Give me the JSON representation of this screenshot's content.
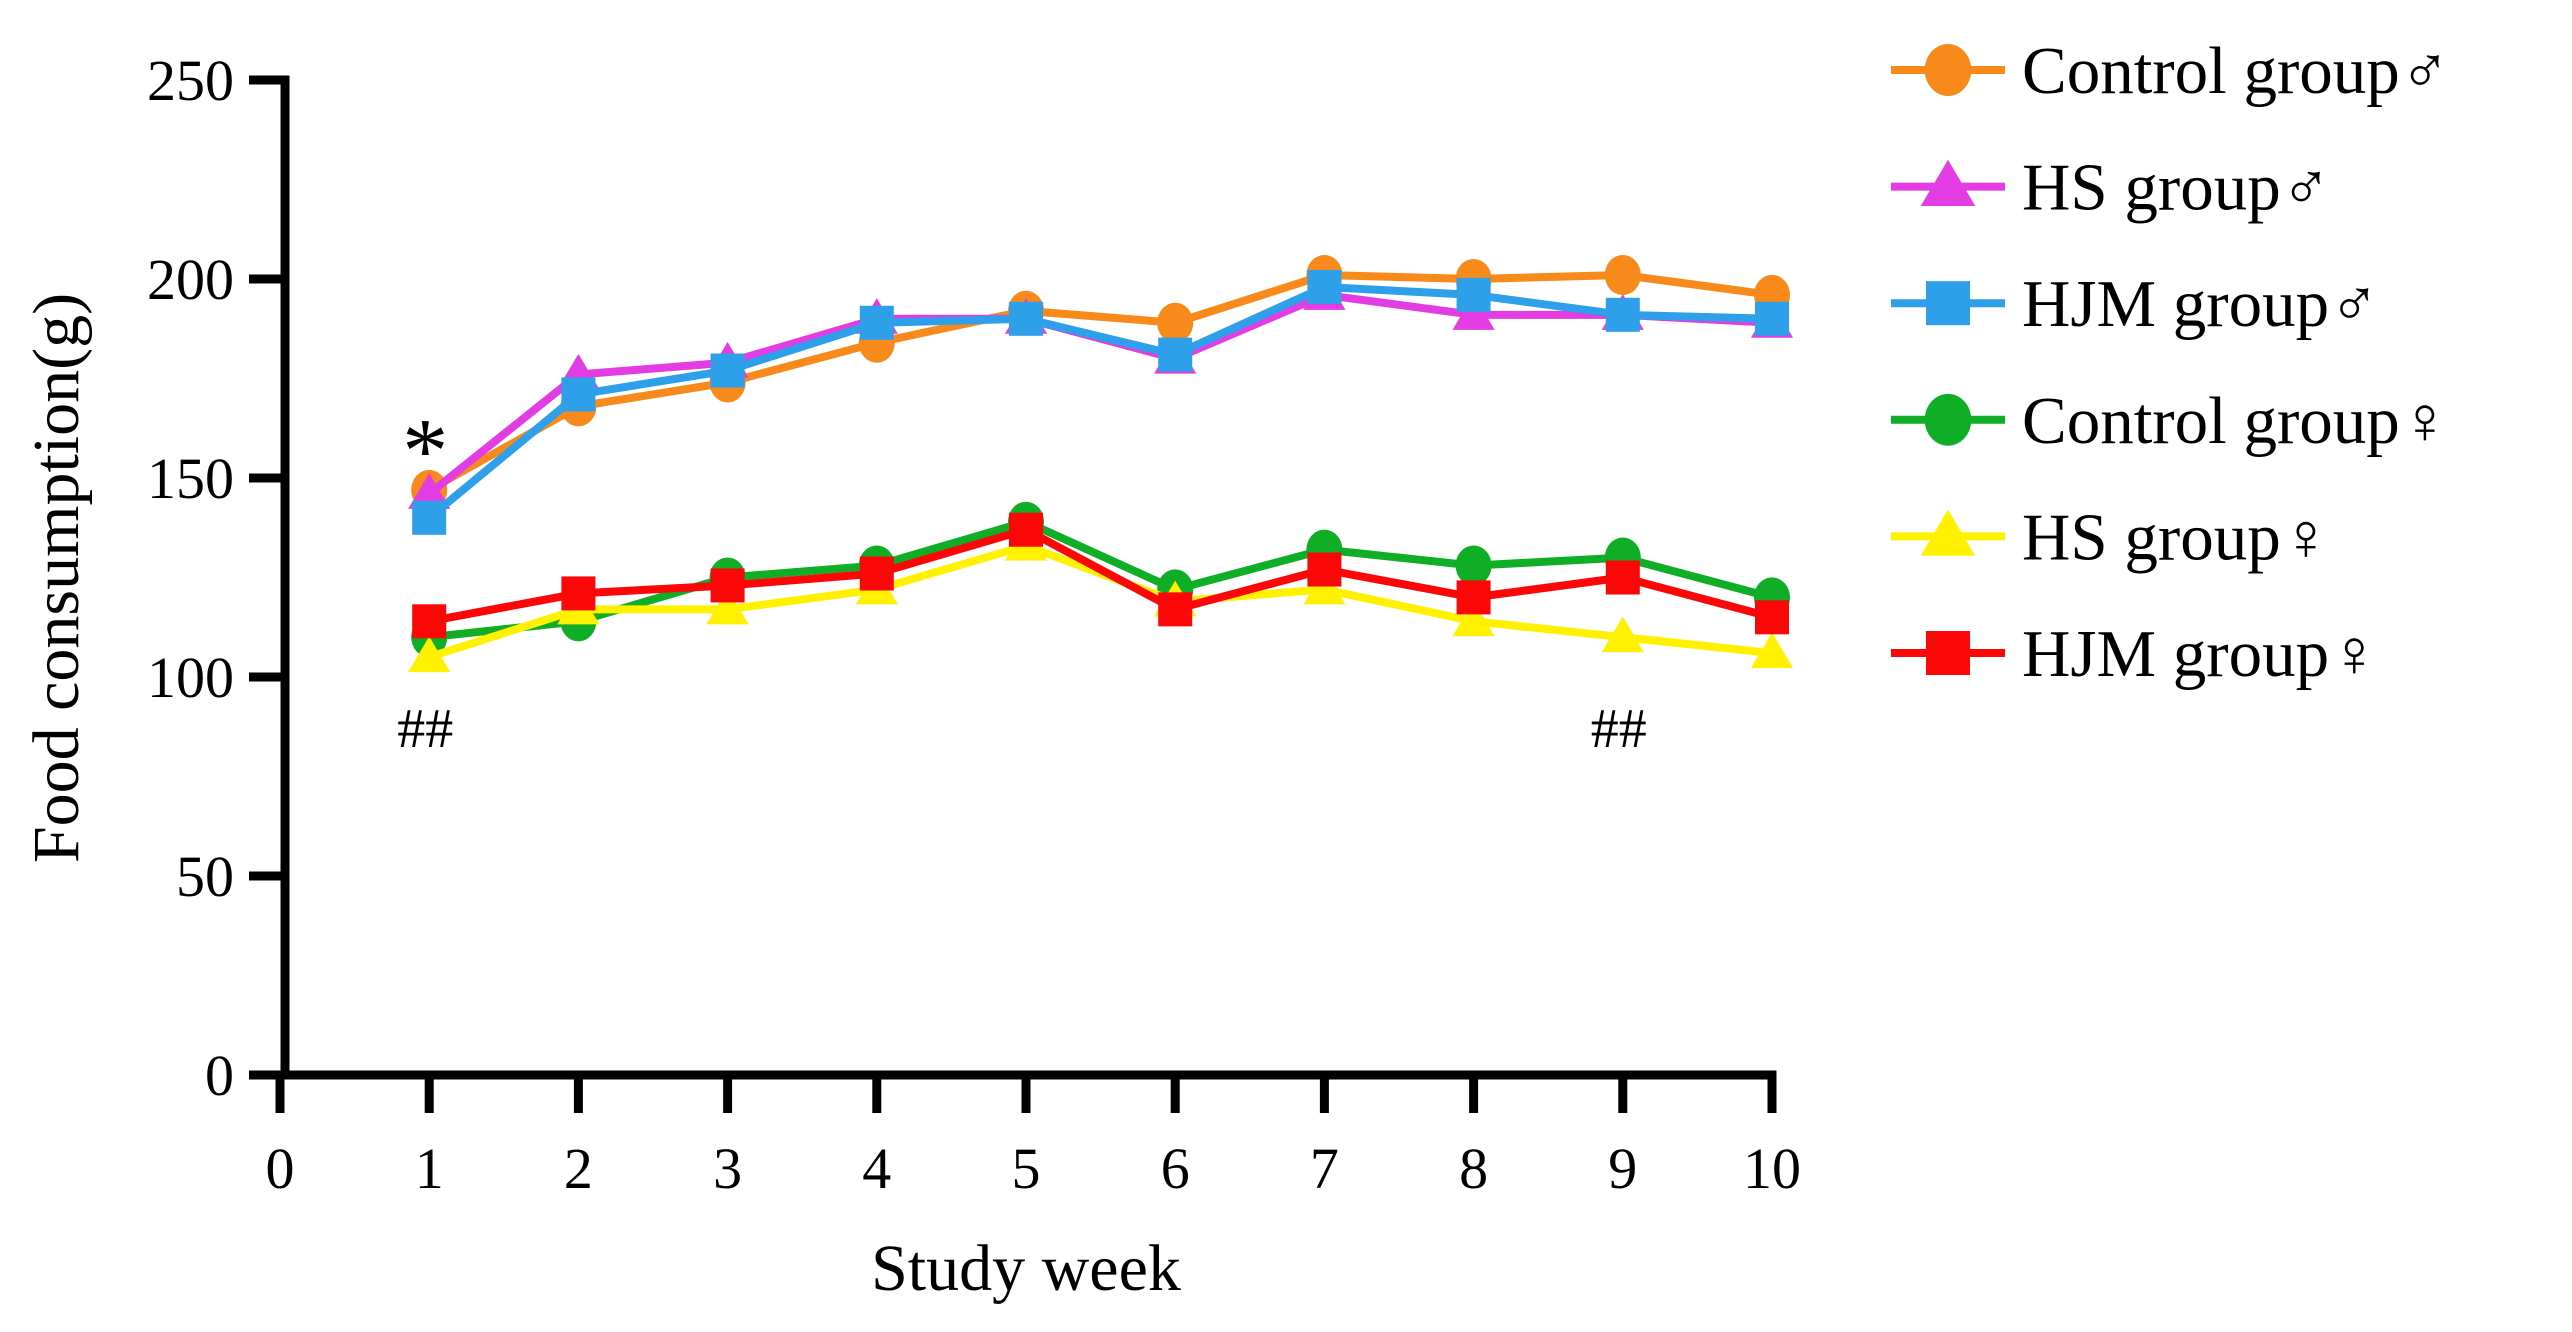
{
  "chart_data": {
    "type": "line",
    "title": "",
    "xlabel": "Study week",
    "ylabel": "Food consumption(g)",
    "x": [
      1,
      2,
      3,
      4,
      5,
      6,
      7,
      8,
      9,
      10
    ],
    "xticks": [
      0,
      1,
      2,
      3,
      4,
      5,
      6,
      7,
      8,
      9,
      10
    ],
    "yticks": [
      0,
      50,
      100,
      150,
      200,
      250
    ],
    "xlim": [
      0,
      10
    ],
    "ylim": [
      0,
      250
    ],
    "grid": false,
    "legend_position": "right",
    "series": [
      {
        "name": "Control group♂",
        "color": "#F8891B",
        "marker": "circle",
        "values": [
          147,
          168,
          174,
          184,
          192,
          189,
          201,
          200,
          201,
          196
        ]
      },
      {
        "name": "HS group♂",
        "color": "#E33CE3",
        "marker": "triangle",
        "values": [
          146,
          176,
          179,
          190,
          190,
          180,
          196,
          191,
          191,
          189
        ]
      },
      {
        "name": "HJM group♂",
        "color": "#2E9FE9",
        "marker": "square",
        "values": [
          140,
          171,
          177,
          189,
          190,
          181,
          198,
          196,
          191,
          190
        ]
      },
      {
        "name": "Control group♀",
        "color": "#0FAE26",
        "marker": "circle",
        "values": [
          110,
          114,
          125,
          128,
          139,
          122,
          132,
          128,
          130,
          120
        ]
      },
      {
        "name": "HS group♀",
        "color": "#FFF100",
        "marker": "triangle",
        "values": [
          105,
          117,
          117,
          122,
          133,
          119,
          122,
          114,
          110,
          106
        ]
      },
      {
        "name": "HJM group♀",
        "color": "#FB0707",
        "marker": "square",
        "values": [
          114,
          121,
          123,
          126,
          137,
          117,
          127,
          120,
          125,
          115
        ]
      }
    ],
    "annotations": [
      {
        "text": "*",
        "week": 1,
        "value": 160
      },
      {
        "text": "##",
        "week": 1,
        "value": 87
      },
      {
        "text": "##",
        "week": 9,
        "value": 87
      }
    ]
  }
}
